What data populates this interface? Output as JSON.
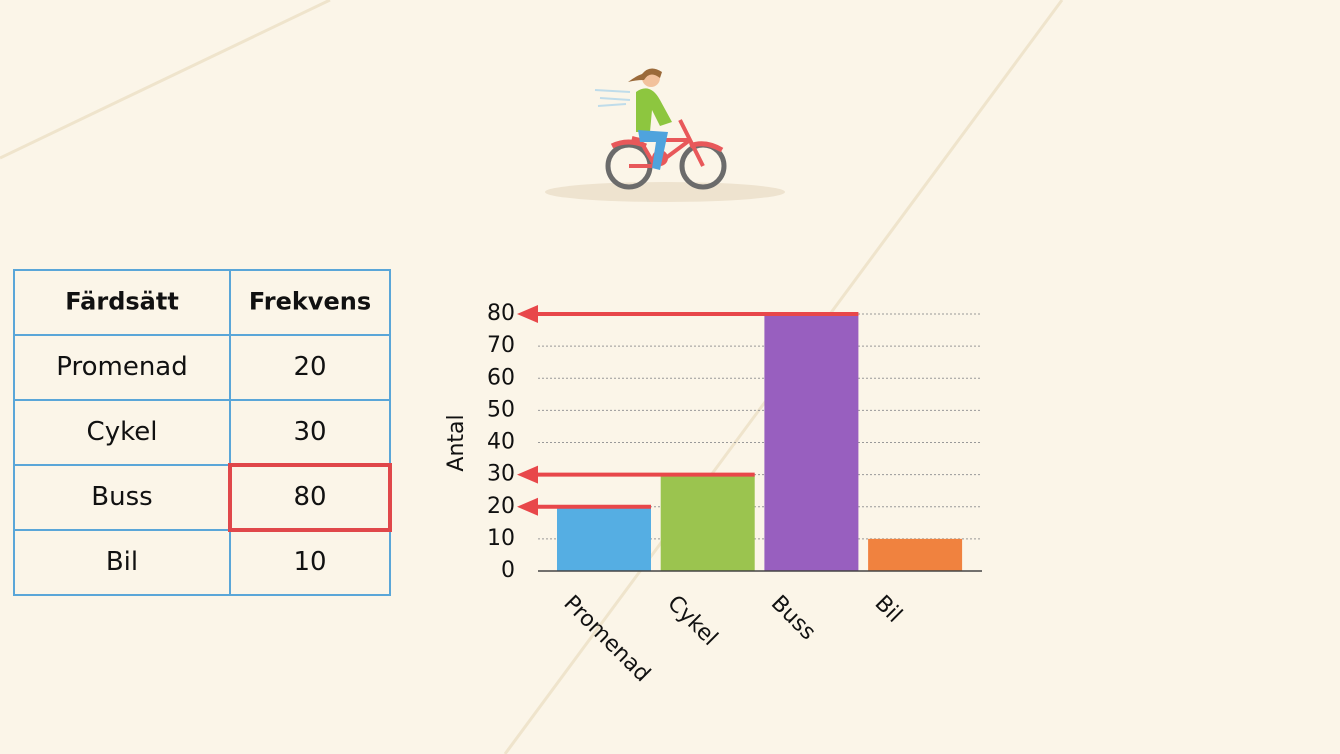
{
  "table": {
    "header": [
      "Färdsätt",
      "Frekvens"
    ],
    "rows": [
      [
        "Promenad",
        20
      ],
      [
        "Cykel",
        30
      ],
      [
        "Buss",
        80
      ],
      [
        "Bil",
        10
      ]
    ]
  },
  "chart_data": {
    "type": "bar",
    "y_label": "Antal",
    "categories": [
      "Promenad",
      "Cykel",
      "Buss",
      "Bil"
    ],
    "values": [
      20,
      30,
      80,
      10
    ],
    "colors": [
      "#55aee3",
      "#9bc44f",
      "#985fbf",
      "#f0823f"
    ],
    "ylim": [
      0,
      80
    ],
    "yticks": [
      0,
      10,
      20,
      30,
      40,
      50,
      60,
      70,
      80
    ],
    "grid": true
  }
}
